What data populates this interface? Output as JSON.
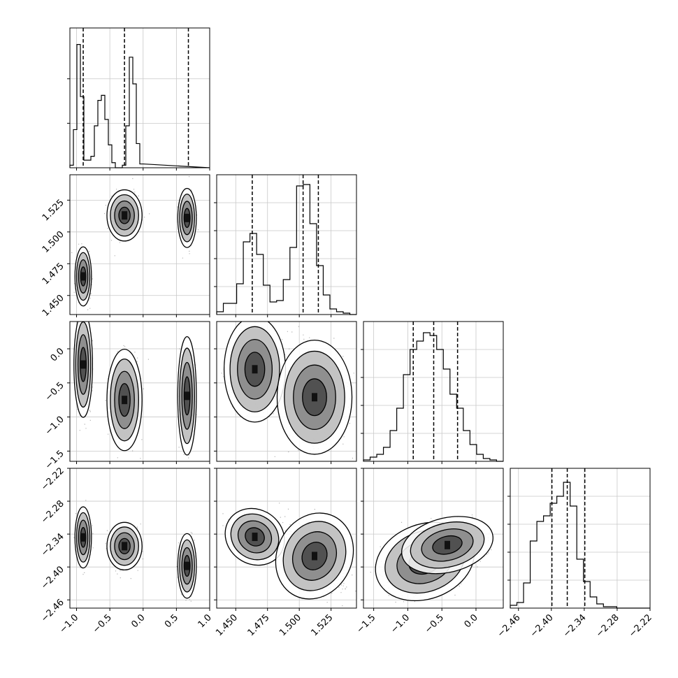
{
  "chart_data": {
    "type": "corner",
    "parameters": [
      {
        "id": "p0",
        "range": [
          -1.1,
          1.0
        ],
        "ticks": [
          -1.0,
          -0.5,
          0.0,
          0.5,
          1.0
        ],
        "tick_labels": [
          "−1.0",
          "−0.5",
          "0.0",
          "0.5",
          "1.0"
        ],
        "quantiles": [
          -0.9,
          -0.28,
          0.68
        ],
        "histogram": {
          "edges_start": -1.1,
          "bin_width": 0.0525,
          "counts": [
            2,
            30,
            97,
            56,
            6,
            6,
            9,
            33,
            53,
            57,
            38,
            18,
            4,
            0,
            0,
            2,
            33,
            87,
            66,
            19,
            3
          ],
          "ymax": 110,
          "yticks": [
            35,
            70
          ]
        }
      },
      {
        "id": "p1",
        "range": [
          1.435,
          1.545
        ],
        "ticks": [
          1.45,
          1.475,
          1.5,
          1.525
        ],
        "tick_labels": [
          "1.450",
          "1.475",
          "1.500",
          "1.525"
        ],
        "quantiles": [
          1.463,
          1.503,
          1.515
        ],
        "histogram": {
          "edges_start": 1.435,
          "bin_width": 0.00524,
          "counts": [
            2,
            8,
            8,
            22,
            52,
            58,
            43,
            21,
            9,
            10,
            25,
            48,
            92,
            93,
            65,
            35,
            14,
            4,
            2,
            1,
            0
          ],
          "ymax": 100,
          "yticks": [
            20,
            40,
            60,
            80
          ]
        }
      },
      {
        "id": "p2",
        "range": [
          -1.65,
          0.4
        ],
        "ticks": [
          -1.5,
          -1.0,
          -0.5,
          0.0
        ],
        "tick_labels": [
          "−1.5",
          "−1.0",
          "−0.5",
          "0.0"
        ],
        "quantiles": [
          -0.92,
          -0.62,
          -0.27
        ],
        "histogram": {
          "edges_start": -1.65,
          "bin_width": 0.0976,
          "counts": [
            1,
            3,
            5,
            10,
            22,
            38,
            62,
            80,
            86,
            92,
            90,
            80,
            66,
            48,
            38,
            22,
            12,
            5,
            2,
            1,
            0
          ],
          "ymax": 100,
          "yticks": [
            20,
            40,
            60,
            80
          ]
        }
      },
      {
        "id": "p3",
        "range": [
          -2.475,
          -2.22
        ],
        "ticks": [
          -2.46,
          -2.4,
          -2.34,
          -2.28,
          -2.22
        ],
        "tick_labels": [
          "−2.46",
          "−2.40",
          "−2.34",
          "−2.28",
          "−2.22"
        ],
        "quantiles": [
          -2.399,
          -2.371,
          -2.339
        ],
        "histogram": {
          "edges_start": -2.475,
          "bin_width": 0.01214,
          "counts": [
            2,
            4,
            18,
            48,
            62,
            66,
            75,
            80,
            90,
            73,
            35,
            19,
            8,
            3,
            1,
            1,
            0,
            0,
            0,
            0,
            0
          ],
          "ymax": 100,
          "yticks": [
            20,
            40,
            60,
            80
          ]
        }
      }
    ],
    "pairs": [
      {
        "x": 0,
        "y": 1,
        "clusters": [
          {
            "mean": [
              -0.9,
              1.465
            ],
            "sd": [
              0.04,
              0.0075
            ],
            "rho": 0.0,
            "weight": 0.35
          },
          {
            "mean": [
              -0.28,
              1.513
            ],
            "sd": [
              0.085,
              0.0065
            ],
            "rho": 0.0,
            "weight": 0.33
          },
          {
            "mean": [
              0.66,
              1.511
            ],
            "sd": [
              0.045,
              0.0075
            ],
            "rho": 0.0,
            "weight": 0.32
          }
        ]
      },
      {
        "x": 0,
        "y": 2,
        "clusters": [
          {
            "mean": [
              -0.9,
              -0.23
            ],
            "sd": [
              0.045,
              0.25
            ],
            "rho": 0.0,
            "weight": 0.35
          },
          {
            "mean": [
              -0.28,
              -0.75
            ],
            "sd": [
              0.085,
              0.24
            ],
            "rho": 0.0,
            "weight": 0.33
          },
          {
            "mean": [
              0.66,
              -0.69
            ],
            "sd": [
              0.045,
              0.28
            ],
            "rho": 0.0,
            "weight": 0.32
          }
        ]
      },
      {
        "x": 0,
        "y": 3,
        "clusters": [
          {
            "mean": [
              -0.9,
              -2.346
            ],
            "sd": [
              0.04,
              0.018
            ],
            "rho": 0.0,
            "weight": 0.35
          },
          {
            "mean": [
              -0.28,
              -2.362
            ],
            "sd": [
              0.085,
              0.014
            ],
            "rho": 0.0,
            "weight": 0.33
          },
          {
            "mean": [
              0.66,
              -2.398
            ],
            "sd": [
              0.045,
              0.019
            ],
            "rho": 0.0,
            "weight": 0.32
          }
        ]
      },
      {
        "x": 1,
        "y": 2,
        "clusters": [
          {
            "mean": [
              1.465,
              -0.3
            ],
            "sd": [
              0.0078,
              0.25
            ],
            "rho": 0.0,
            "weight": 0.35
          },
          {
            "mean": [
              1.512,
              -0.71
            ],
            "sd": [
              0.0095,
              0.27
            ],
            "rho": 0.0,
            "weight": 0.65
          }
        ]
      },
      {
        "x": 1,
        "y": 3,
        "clusters": [
          {
            "mean": [
              1.465,
              -2.345
            ],
            "sd": [
              0.0078,
              0.016
            ],
            "rho": -0.55,
            "weight": 0.35
          },
          {
            "mean": [
              1.512,
              -2.38
            ],
            "sd": [
              0.0095,
              0.026
            ],
            "rho": -0.4,
            "weight": 0.65
          }
        ]
      },
      {
        "x": 2,
        "y": 3,
        "clusters": [
          {
            "mean": [
              -0.75,
              -2.39
            ],
            "sd": [
              0.24,
              0.022
            ],
            "rho": 0.3,
            "weight": 0.6
          },
          {
            "mean": [
              -0.42,
              -2.36
            ],
            "sd": [
              0.22,
              0.016
            ],
            "rho": 0.2,
            "weight": 0.4
          }
        ]
      }
    ],
    "grid": true,
    "contour_levels": [
      0.25,
      0.55,
      0.8,
      0.95
    ]
  }
}
